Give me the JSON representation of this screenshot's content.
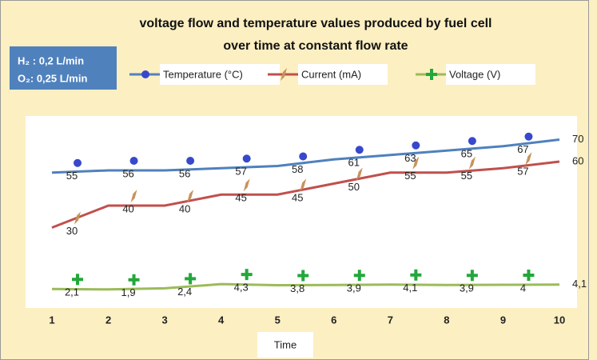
{
  "chart_data": {
    "type": "line",
    "title": [
      "voltage flow and temperature values produced by fuel cell",
      "over time at constant flow rate"
    ],
    "note": [
      "H₂ : 0,2 L/min",
      "O₂: 0,25 L/min"
    ],
    "x_label": "Time",
    "x": [
      1,
      2,
      3,
      4,
      5,
      6,
      7,
      8,
      9,
      10
    ],
    "xlim": [
      1,
      10
    ],
    "xticks": [
      1,
      2,
      3,
      4,
      5,
      6,
      7,
      8,
      9,
      10
    ],
    "series": [
      {
        "name": "Temperature (°C)",
        "color": "#4f81bd",
        "marker_color": "#3848cc",
        "marker": "dot",
        "values": [
          55,
          56,
          56,
          57,
          58,
          61,
          63,
          65,
          67,
          70
        ]
      },
      {
        "name": "Current (mA)",
        "color": "#c0504d",
        "marker_color": "#c8925a",
        "marker": "leaf",
        "values": [
          30,
          40,
          40,
          45,
          45,
          50,
          55,
          55,
          57,
          60
        ]
      },
      {
        "name": "Voltage (V)",
        "color": "#9bbb59",
        "marker_color": "#22a83a",
        "marker": "cross",
        "values": [
          2.1,
          1.9,
          2.4,
          4.3,
          3.8,
          3.9,
          4.1,
          3.9,
          4,
          4.1
        ],
        "value_labels": [
          "2,1",
          "1,9",
          "2,4",
          "4,3",
          "3,8",
          "3,9",
          "4,1",
          "3,9",
          "4",
          "4,1"
        ]
      }
    ]
  }
}
